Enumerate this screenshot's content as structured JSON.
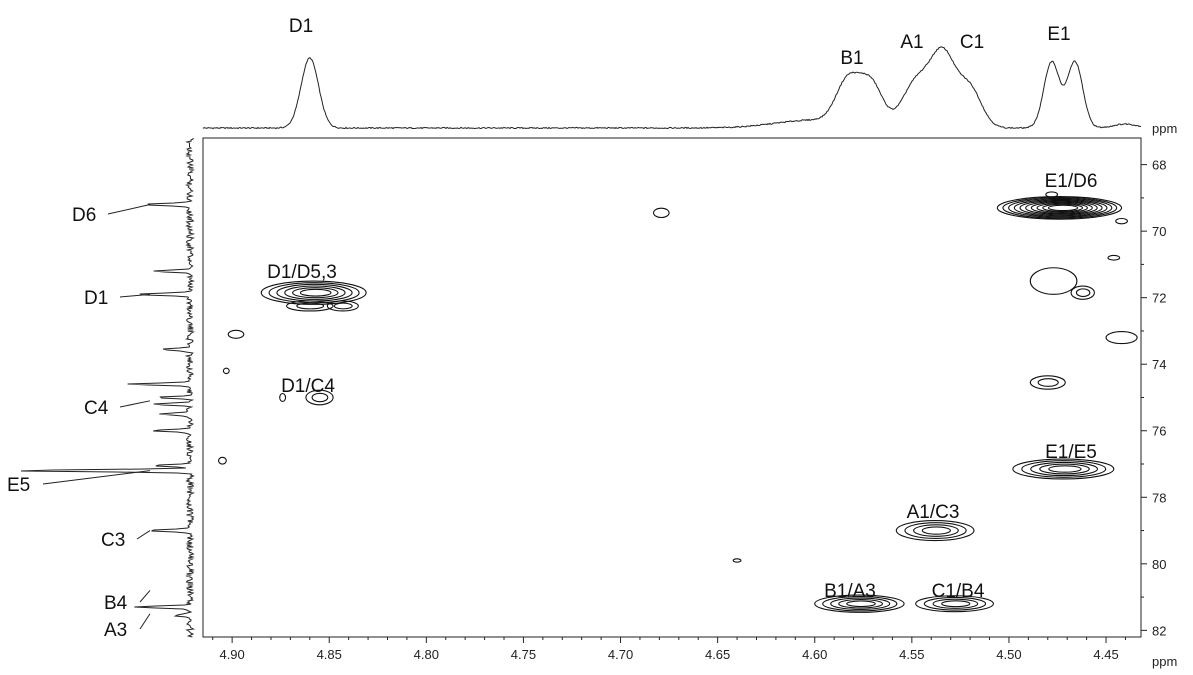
{
  "chart_data": {
    "type": "heatmap",
    "x_axis": {
      "unit": "ppm",
      "range": [
        4.915,
        4.432
      ],
      "reversed": true,
      "ticks": [
        4.9,
        4.85,
        4.8,
        4.75,
        4.7,
        4.65,
        4.6,
        4.55,
        4.5,
        4.45
      ],
      "tick_labels": [
        "4.90",
        "4.85",
        "4.80",
        "4.75",
        "4.70",
        "4.65",
        "4.60",
        "4.55",
        "4.50",
        "4.45"
      ]
    },
    "y_axis": {
      "unit": "ppm",
      "range": [
        67.2,
        82.2
      ],
      "reversed": true,
      "position": "right",
      "ticks": [
        68,
        70,
        72,
        74,
        76,
        78,
        80,
        82
      ],
      "tick_labels": [
        "68",
        "70",
        "72",
        "74",
        "76",
        "78",
        "80",
        "82"
      ]
    },
    "top_projection_peaks": [
      {
        "label": "D1",
        "x": 4.86
      },
      {
        "label": "B1",
        "x": 4.578
      },
      {
        "label": "A1",
        "x": 4.548
      },
      {
        "label": "C1",
        "x": 4.522
      },
      {
        "label": "E1",
        "x": 4.47
      }
    ],
    "left_projection_peaks": [
      {
        "label": "D6",
        "y": 69.2
      },
      {
        "label": "D1",
        "y": 71.9
      },
      {
        "label": "C4",
        "y": 75.1
      },
      {
        "label": "E5",
        "y": 77.2
      },
      {
        "label": "C3",
        "y": 79.0
      },
      {
        "label": "B4",
        "y": 80.8
      },
      {
        "label": "A3",
        "y": 81.5
      }
    ],
    "cross_peaks": [
      {
        "label": "D1/D5,3",
        "x": 4.858,
        "y": 71.9
      },
      {
        "label": "D1/C4",
        "x": 4.856,
        "y": 75.0
      },
      {
        "label": "E1/D6",
        "x": 4.474,
        "y": 69.3
      },
      {
        "label": "E1/E5",
        "x": 4.472,
        "y": 77.2
      },
      {
        "label": "A1/C3",
        "x": 4.538,
        "y": 79.0
      },
      {
        "label": "B1/A3",
        "x": 4.577,
        "y": 81.2
      },
      {
        "label": "C1/B4",
        "x": 4.528,
        "y": 81.2
      }
    ],
    "contours": [
      {
        "x": 4.858,
        "y": 71.85,
        "sx": 0.027,
        "sy": 0.35,
        "levels": 6
      },
      {
        "x": 4.86,
        "y": 72.25,
        "sx": 0.012,
        "sy": 0.15,
        "levels": 2
      },
      {
        "x": 4.843,
        "y": 72.25,
        "sx": 0.008,
        "sy": 0.15,
        "levels": 2
      },
      {
        "x": 4.855,
        "y": 75.0,
        "sx": 0.007,
        "sy": 0.22,
        "levels": 2
      },
      {
        "x": 4.874,
        "y": 75.0,
        "sx": 0.0015,
        "sy": 0.12,
        "levels": 1
      },
      {
        "x": 4.898,
        "y": 73.1,
        "sx": 0.004,
        "sy": 0.12,
        "levels": 1
      },
      {
        "x": 4.903,
        "y": 74.2,
        "sx": 0.0015,
        "sy": 0.08,
        "levels": 1
      },
      {
        "x": 4.905,
        "y": 76.9,
        "sx": 0.002,
        "sy": 0.1,
        "levels": 1
      },
      {
        "x": 4.679,
        "y": 69.45,
        "sx": 0.004,
        "sy": 0.14,
        "levels": 1
      },
      {
        "x": 4.64,
        "y": 79.9,
        "sx": 0.002,
        "sy": 0.05,
        "levels": 1
      },
      {
        "x": 4.474,
        "y": 69.3,
        "sx": 0.032,
        "sy": 0.34,
        "levels": 10
      },
      {
        "x": 4.478,
        "y": 68.9,
        "sx": 0.003,
        "sy": 0.08,
        "levels": 1
      },
      {
        "x": 4.442,
        "y": 69.7,
        "sx": 0.003,
        "sy": 0.08,
        "levels": 1
      },
      {
        "x": 4.446,
        "y": 70.8,
        "sx": 0.003,
        "sy": 0.07,
        "levels": 1
      },
      {
        "x": 4.477,
        "y": 71.5,
        "sx": 0.012,
        "sy": 0.4,
        "levels": 1
      },
      {
        "x": 4.462,
        "y": 71.85,
        "sx": 0.006,
        "sy": 0.2,
        "levels": 2
      },
      {
        "x": 4.442,
        "y": 73.2,
        "sx": 0.008,
        "sy": 0.18,
        "levels": 1
      },
      {
        "x": 4.48,
        "y": 74.55,
        "sx": 0.009,
        "sy": 0.2,
        "levels": 2
      },
      {
        "x": 4.472,
        "y": 77.15,
        "sx": 0.026,
        "sy": 0.3,
        "levels": 5
      },
      {
        "x": 4.538,
        "y": 79.0,
        "sx": 0.02,
        "sy": 0.3,
        "levels": 4
      },
      {
        "x": 4.577,
        "y": 81.2,
        "sx": 0.023,
        "sy": 0.26,
        "levels": 5
      },
      {
        "x": 4.528,
        "y": 81.2,
        "sx": 0.02,
        "sy": 0.24,
        "levels": 4
      }
    ],
    "top_projection_shape": [
      {
        "x": 4.86,
        "h": 70,
        "w": 0.0045
      },
      {
        "x": 4.583,
        "h": 42,
        "w": 0.006
      },
      {
        "x": 4.571,
        "h": 42,
        "w": 0.006
      },
      {
        "x": 4.548,
        "h": 44,
        "w": 0.007
      },
      {
        "x": 4.534,
        "h": 72,
        "w": 0.0065
      },
      {
        "x": 4.52,
        "h": 38,
        "w": 0.006
      },
      {
        "x": 4.478,
        "h": 66,
        "w": 0.004
      },
      {
        "x": 4.466,
        "h": 66,
        "w": 0.004
      },
      {
        "x": 4.6,
        "h": 8,
        "w": 0.02
      },
      {
        "x": 4.44,
        "h": 4,
        "w": 0.006
      }
    ],
    "left_projection_shape": [
      {
        "y": 69.2,
        "h": 48
      },
      {
        "y": 71.2,
        "h": 38
      },
      {
        "y": 71.9,
        "h": 54
      },
      {
        "y": 73.55,
        "h": 30
      },
      {
        "y": 74.6,
        "h": 62
      },
      {
        "y": 75.0,
        "h": 30
      },
      {
        "y": 75.2,
        "h": 36
      },
      {
        "y": 75.5,
        "h": 30
      },
      {
        "y": 76.0,
        "h": 36
      },
      {
        "y": 77.05,
        "h": 38
      },
      {
        "y": 77.2,
        "h": 175
      },
      {
        "y": 79.0,
        "h": 46
      },
      {
        "y": 81.3,
        "h": 58
      },
      {
        "y": 81.55,
        "h": 16
      }
    ]
  }
}
